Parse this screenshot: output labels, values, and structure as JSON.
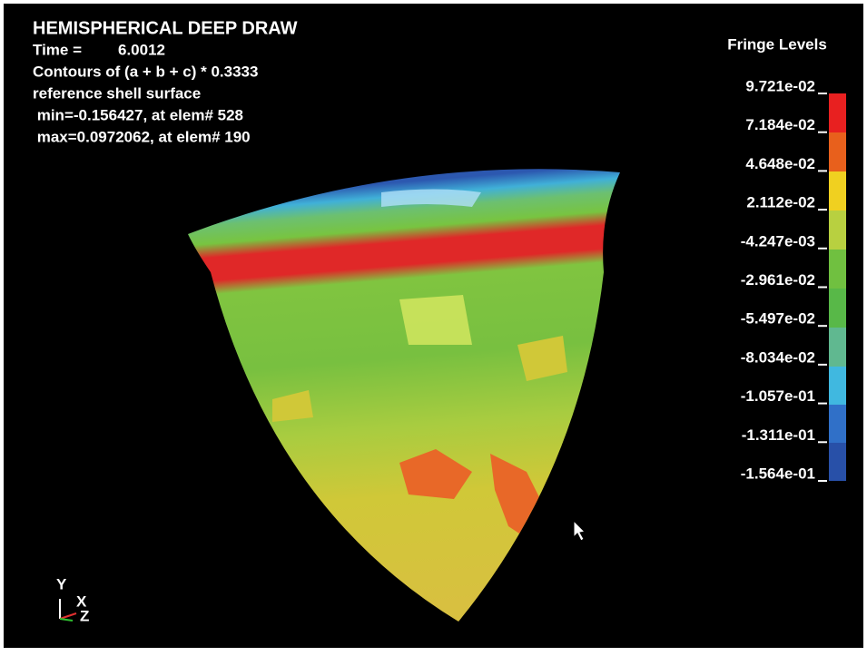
{
  "header": {
    "title": "HEMISPHERICAL DEEP DRAW",
    "time_label": "Time =",
    "time_value": "6.0012",
    "contours": "Contours of (a + b + c) * 0.3333",
    "surface": "reference shell surface",
    "min": " min=-0.156427, at elem# 528",
    "max": " max=0.0972062, at elem# 190"
  },
  "legend": {
    "title": "Fringe Levels",
    "levels": [
      "9.721e-02",
      "7.184e-02",
      "4.648e-02",
      "2.112e-02",
      "-4.247e-03",
      "-2.961e-02",
      "-5.497e-02",
      "-8.034e-02",
      "-1.057e-01",
      "-1.311e-01",
      "-1.564e-01"
    ]
  },
  "triad": {
    "y": "Y",
    "x": "X",
    "z": "Z"
  }
}
